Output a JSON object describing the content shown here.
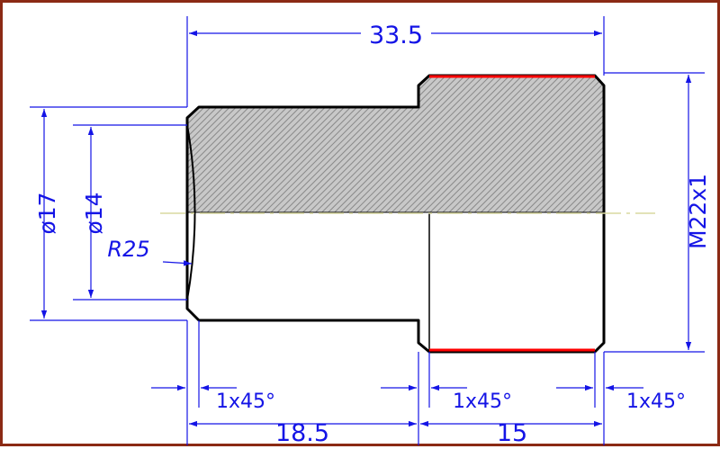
{
  "drawing": {
    "dimensions": {
      "overall_length": "33.5",
      "left_length": "18.5",
      "right_length": "15",
      "thread": "M22x1",
      "outer_diameter": "ø17",
      "inner_diameter": "ø14",
      "radius": "R25",
      "chamfer_left": "1x45°",
      "chamfer_middle": "1x45°",
      "chamfer_right": "1x45°"
    },
    "colors": {
      "dimension": "#1414e6",
      "outline": "#000000",
      "thread_highlight": "#ff0000",
      "frame": "#8b2a14",
      "centerline": "#d9d9a0"
    }
  }
}
